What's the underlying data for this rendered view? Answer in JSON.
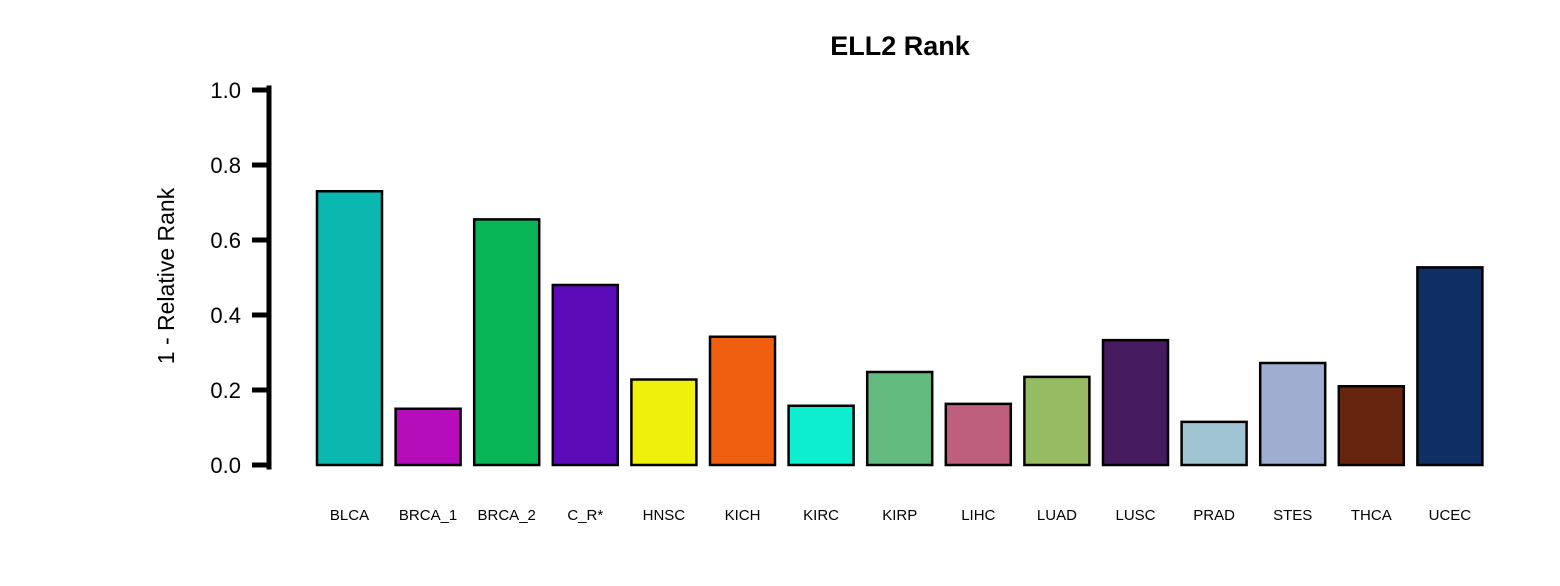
{
  "chart_data": {
    "type": "bar",
    "title": "ELL2 Rank",
    "xlabel": "",
    "ylabel": "1 - Relative Rank",
    "ylim": [
      0,
      1
    ],
    "yticks": [
      "0.0",
      "0.2",
      "0.4",
      "0.6",
      "0.8",
      "1.0"
    ],
    "ytick_values": [
      0,
      0.2,
      0.4,
      0.6,
      0.8,
      1.0
    ],
    "grid": false,
    "categories": [
      "BLCA",
      "BRCA_1",
      "BRCA_2",
      "C_R*",
      "HNSC",
      "KICH",
      "KIRC",
      "KIRP",
      "LIHC",
      "LUAD",
      "LUSC",
      "PRAD",
      "STES",
      "THCA",
      "UCEC"
    ],
    "values": [
      0.73,
      0.15,
      0.655,
      0.48,
      0.228,
      0.342,
      0.158,
      0.248,
      0.163,
      0.235,
      0.333,
      0.115,
      0.272,
      0.21,
      0.527
    ],
    "colors": [
      "#0bb8b0",
      "#b40db9",
      "#08b658",
      "#5d0ab8",
      "#eff00c",
      "#f05f10",
      "#0deed0",
      "#63bb80",
      "#bd5f7d",
      "#97bb62",
      "#471b5f",
      "#a0c4d1",
      "#9fadd0",
      "#672510",
      "#0f2e63"
    ]
  }
}
